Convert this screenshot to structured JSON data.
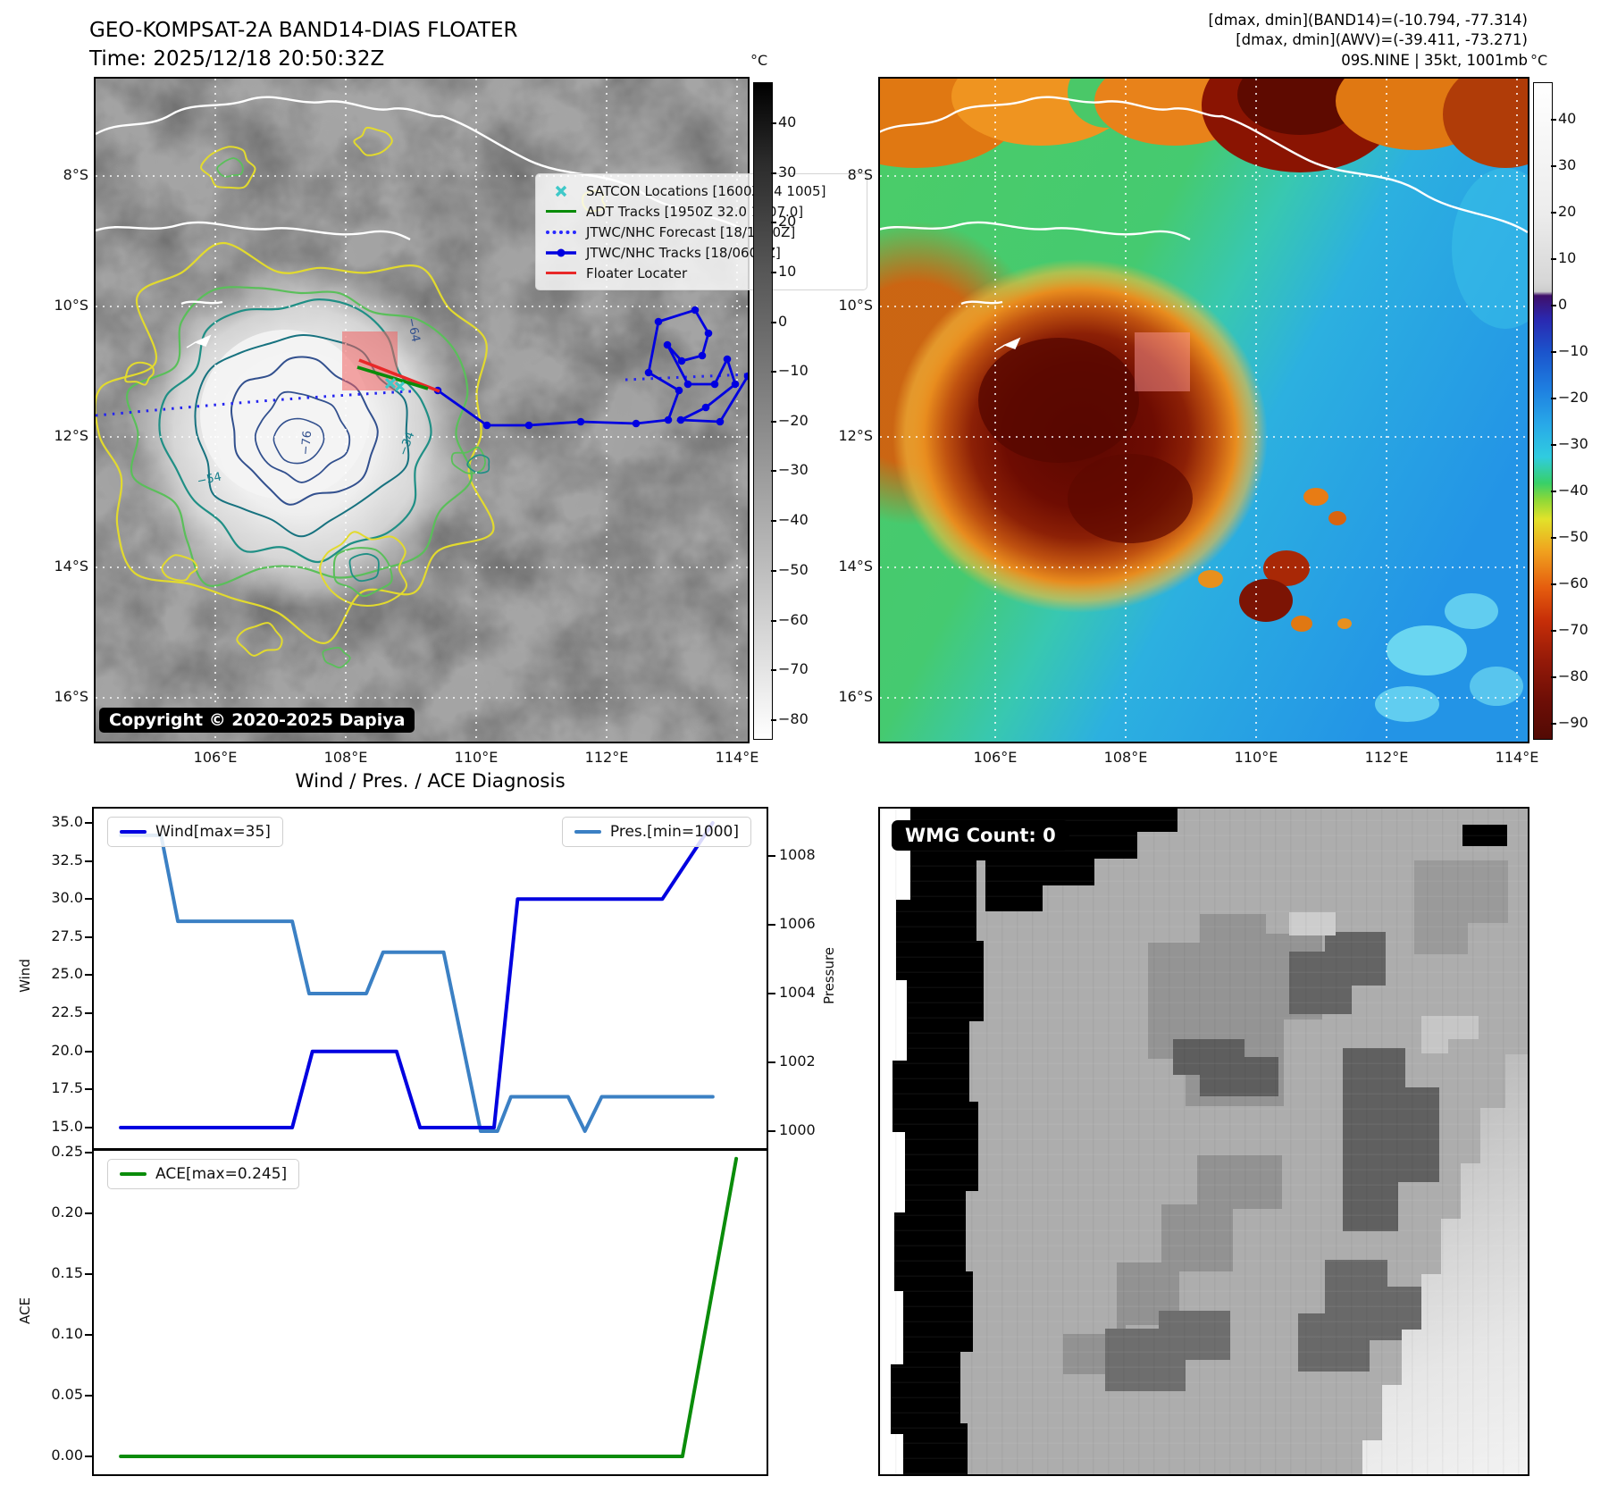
{
  "panel_band14": {
    "title_line1": "GEO-KOMPSAT-2A BAND14-DIAS FLOATER",
    "title_line2": "Time: 2025/12/18 20:50:32Z",
    "copyright": "Copyright © 2020-2025 Dapiya",
    "colorbar_unit": "°C",
    "colorbar_ticks": [
      "40",
      "30",
      "20",
      "10",
      "0",
      "−10",
      "−20",
      "−30",
      "−40",
      "−50",
      "−60",
      "−70",
      "−80"
    ],
    "lat_ticks": [
      "8°S",
      "10°S",
      "12°S",
      "14°S",
      "16°S"
    ],
    "lon_ticks": [
      "106°E",
      "108°E",
      "110°E",
      "112°E",
      "114°E"
    ],
    "contour_labels": [
      "−64",
      "−76",
      "−54",
      "−34"
    ],
    "legend": [
      {
        "icon": "satcon-x-marker-icon",
        "color": "#3fc8c8",
        "label": "SATCON Locations [1600Z 34 1005]"
      },
      {
        "icon": "adt-line-icon",
        "color": "#0a8c0a",
        "label": "ADT Tracks [1950Z 32.0 1007.0]"
      },
      {
        "icon": "forecast-dotted-line-icon",
        "color": "#2828ff",
        "label": "JTWC/NHC Forecast [18/1800Z]"
      },
      {
        "icon": "track-line-dot-icon",
        "color": "#0000e0",
        "label": "JTWC/NHC Tracks [18/0600Z]"
      },
      {
        "icon": "floater-line-icon",
        "color": "#e82828",
        "label": "Floater Locater"
      }
    ]
  },
  "panel_awv": {
    "header_line1": "[dmax, dmin](BAND14)=(-10.794, -77.314)",
    "header_line2": "[dmax, dmin](AWV)=(-39.411, -73.271)",
    "header_line3": "09S.NINE | 35kt, 1001mb",
    "colorbar_unit": "°C",
    "colorbar_ticks": [
      "40",
      "30",
      "20",
      "10",
      "0",
      "−10",
      "−20",
      "−30",
      "−40",
      "−50",
      "−60",
      "−70",
      "−80",
      "−90"
    ],
    "lat_ticks": [
      "8°S",
      "10°S",
      "12°S",
      "14°S",
      "16°S"
    ],
    "lon_ticks": [
      "106°E",
      "108°E",
      "110°E",
      "112°E",
      "114°E"
    ]
  },
  "diagnosis": {
    "title": "Wind / Pres. / ACE Diagnosis",
    "wind_axis_label": "Wind",
    "pressure_axis_label": "Pressure",
    "ace_axis_label": "ACE",
    "wind_ticks": [
      "35.0",
      "32.5",
      "30.0",
      "27.5",
      "25.0",
      "22.5",
      "20.0",
      "17.5",
      "15.0"
    ],
    "pressure_ticks": [
      "1008",
      "1006",
      "1004",
      "1002",
      "1000"
    ],
    "ace_ticks": [
      "0.25",
      "0.20",
      "0.15",
      "0.10",
      "0.05",
      "0.00"
    ],
    "wind_legend": "Wind[max=35]",
    "pressure_legend": "Pres.[min=1000]",
    "ace_legend": "ACE[max=0.245]",
    "wind_color": "#0000e0",
    "pressure_color": "#3b80c4",
    "ace_color": "#0a8c0a"
  },
  "panel_wmg": {
    "count_label": "WMG Count: 0"
  },
  "chart_data": [
    {
      "type": "line",
      "title": "Wind / Pres. / ACE Diagnosis",
      "ylabel": "Wind",
      "ylabel_right": "Pressure",
      "ylim": [
        13.6,
        36.0
      ],
      "ylim_right": [
        999.6,
        1009.4
      ],
      "x_note": "time axis, no tick labels shown; x given as 0-1 fraction",
      "grid": false,
      "legend_position": "upper-left and upper-right",
      "series": [
        {
          "name": "Wind[max=35]",
          "axis": "left",
          "color": "#0000e0",
          "points": [
            [
              0.04,
              15
            ],
            [
              0.295,
              15
            ],
            [
              0.325,
              20
            ],
            [
              0.45,
              20
            ],
            [
              0.485,
              15
            ],
            [
              0.595,
              15
            ],
            [
              0.63,
              30
            ],
            [
              0.845,
              30
            ],
            [
              0.92,
              35
            ]
          ]
        },
        {
          "name": "Pres.[min=1000]",
          "axis": "right",
          "color": "#3b80c4",
          "points": [
            [
              0.04,
              1008.6
            ],
            [
              0.1,
              1008.6
            ],
            [
              0.125,
              1006.1
            ],
            [
              0.295,
              1006.1
            ],
            [
              0.32,
              1004
            ],
            [
              0.405,
              1004
            ],
            [
              0.43,
              1005.2
            ],
            [
              0.52,
              1005.2
            ],
            [
              0.575,
              1000
            ],
            [
              0.6,
              1000
            ],
            [
              0.62,
              1001
            ],
            [
              0.705,
              1001
            ],
            [
              0.73,
              1000
            ],
            [
              0.755,
              1001
            ],
            [
              0.92,
              1001
            ]
          ]
        }
      ]
    },
    {
      "type": "line",
      "ylabel": "ACE",
      "ylim": [
        -0.012,
        0.252
      ],
      "grid": false,
      "series": [
        {
          "name": "ACE[max=0.245]",
          "color": "#0a8c0a",
          "points": [
            [
              0.04,
              0.0
            ],
            [
              0.875,
              0.0
            ],
            [
              0.955,
              0.245
            ]
          ]
        }
      ]
    }
  ]
}
